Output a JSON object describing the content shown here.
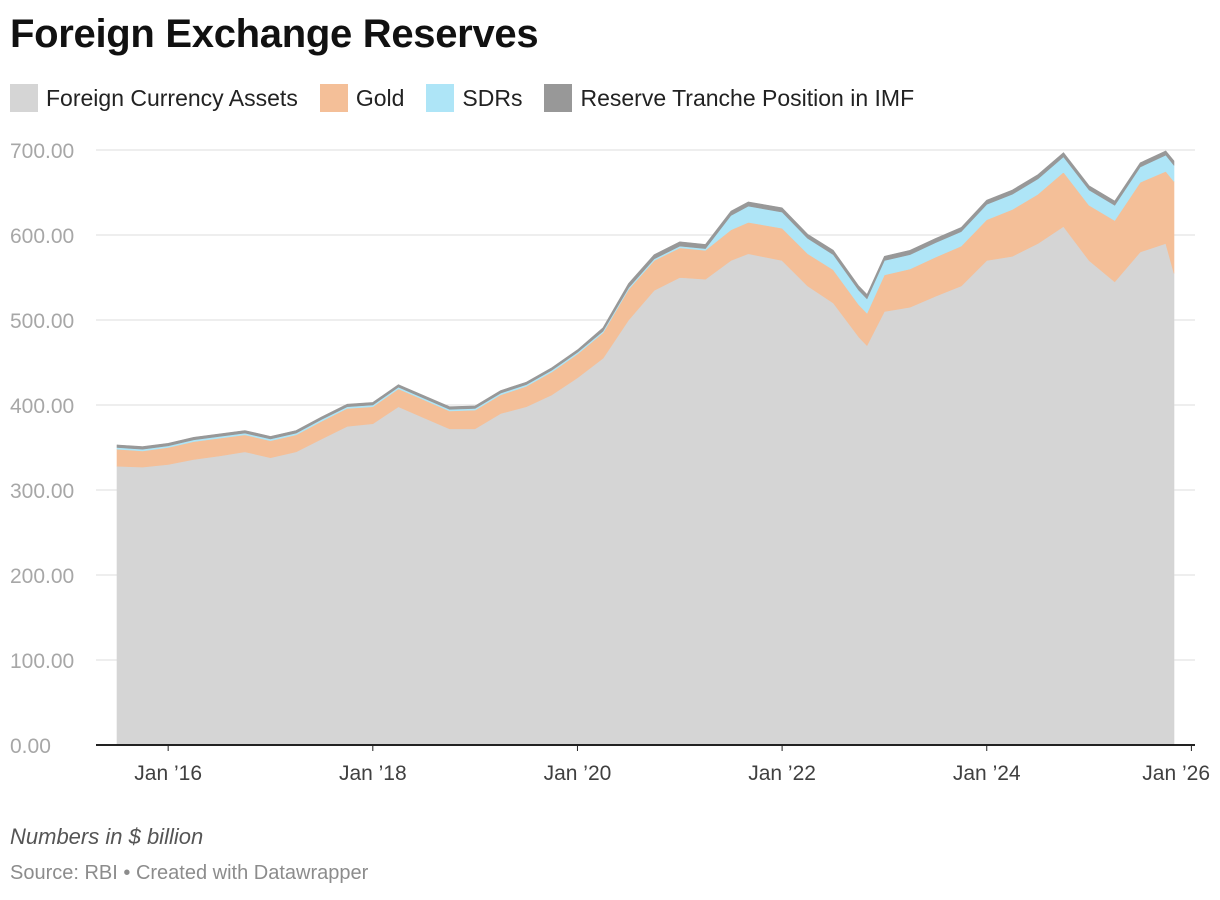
{
  "header": {
    "title": "Foreign Exchange Reserves"
  },
  "footer": {
    "note": "Numbers in $ billion",
    "source": "Source: RBI • Created with Datawrapper"
  },
  "chart_data": {
    "type": "area",
    "stacked": true,
    "title": "Foreign Exchange Reserves",
    "ylabel": "Numbers in $ billion",
    "ylim": [
      0,
      700
    ],
    "yticks": [
      0,
      100,
      200,
      300,
      400,
      500,
      600,
      700
    ],
    "ytick_labels": [
      "0.00",
      "100.00",
      "200.00",
      "300.00",
      "400.00",
      "500.00",
      "600.00",
      "700.00"
    ],
    "xlim": [
      2015.5,
      2025.83
    ],
    "xticks": [
      2016,
      2018,
      2020,
      2022,
      2024,
      2026
    ],
    "xtick_labels": [
      "Jan ’16",
      "Jan ’18",
      "Jan ’20",
      "Jan ’22",
      "Jan ’24",
      "Jan ’26"
    ],
    "legend_position": "top-left",
    "x": [
      2015.5,
      2015.75,
      2016.0,
      2016.25,
      2016.5,
      2016.75,
      2017.0,
      2017.25,
      2017.5,
      2017.75,
      2018.0,
      2018.25,
      2018.5,
      2018.75,
      2019.0,
      2019.25,
      2019.5,
      2019.75,
      2020.0,
      2020.25,
      2020.5,
      2020.75,
      2021.0,
      2021.25,
      2021.5,
      2021.67,
      2022.0,
      2022.25,
      2022.5,
      2022.75,
      2022.83,
      2023.0,
      2023.25,
      2023.5,
      2023.75,
      2024.0,
      2024.25,
      2024.5,
      2024.75,
      2025.0,
      2025.25,
      2025.5,
      2025.75,
      2025.83
    ],
    "series": [
      {
        "name": "Foreign Currency Assets",
        "color": "#d5d5d5",
        "values": [
          328,
          327,
          330,
          336,
          340,
          345,
          338,
          345,
          360,
          375,
          378,
          398,
          385,
          372,
          372,
          390,
          398,
          412,
          432,
          455,
          500,
          535,
          550,
          548,
          570,
          578,
          570,
          540,
          520,
          480,
          470,
          510,
          515,
          528,
          540,
          570,
          575,
          590,
          610,
          570,
          545,
          580,
          590,
          555
        ]
      },
      {
        "name": "Gold",
        "color": "#f4bf98",
        "values": [
          20,
          19,
          20,
          21,
          21,
          20,
          20,
          20,
          21,
          21,
          20,
          21,
          21,
          21,
          22,
          22,
          24,
          27,
          28,
          30,
          36,
          35,
          35,
          34,
          36,
          37,
          38,
          38,
          39,
          38,
          38,
          43,
          45,
          46,
          47,
          48,
          55,
          58,
          64,
          65,
          72,
          82,
          85,
          108
        ]
      },
      {
        "name": "SDRs",
        "color": "#aee5f7",
        "values": [
          2,
          2,
          2,
          2,
          2,
          2,
          2,
          2,
          2,
          2,
          2,
          2,
          2,
          2,
          2,
          2,
          2,
          2,
          2,
          2,
          2,
          2,
          2,
          2,
          17,
          19,
          19,
          18,
          18,
          17,
          17,
          17,
          17,
          17,
          17,
          18,
          18,
          18,
          18,
          18,
          18,
          18,
          19,
          19
        ]
      },
      {
        "name": "Reserve Tranche Position in IMF",
        "color": "#989898",
        "values": [
          3,
          3,
          3,
          3,
          3,
          3,
          3,
          3,
          3,
          3,
          3,
          3,
          3,
          3,
          3,
          3,
          3,
          3,
          3,
          4,
          5,
          5,
          5,
          5,
          5,
          5,
          5,
          5,
          5,
          5,
          5,
          5,
          5,
          5,
          5,
          5,
          5,
          5,
          5,
          5,
          5,
          5,
          5,
          5
        ]
      }
    ]
  }
}
